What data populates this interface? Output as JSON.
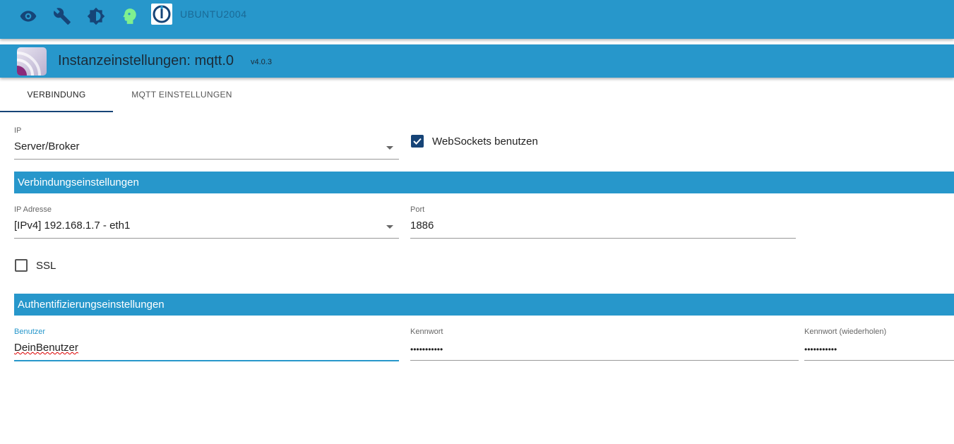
{
  "topbar": {
    "icons": [
      "eye-icon",
      "wrench-icon",
      "brightness-icon",
      "head-icon"
    ],
    "host": "UBUNTU2004",
    "icon_color": "#164477",
    "accent": "#2797cb"
  },
  "header": {
    "title": "Instanzeinstellungen: mqtt.0",
    "version": "v4.0.3"
  },
  "tabs": [
    {
      "label": "VERBINDUNG",
      "active": true
    },
    {
      "label": "MQTT EINSTELLUNGEN",
      "active": false
    }
  ],
  "form": {
    "ip": {
      "label": "IP",
      "value": "Server/Broker"
    },
    "websockets": {
      "label": "WebSockets benutzen",
      "checked": true
    },
    "section1": "Verbindungseinstellungen",
    "ip_address": {
      "label": "IP Adresse",
      "value": "[IPv4] 192.168.1.7 - eth1"
    },
    "port": {
      "label": "Port",
      "value": "1886"
    },
    "ssl": {
      "label": "SSL",
      "checked": false
    },
    "section2": "Authentifizierungseinstellungen",
    "user": {
      "label": "Benutzer",
      "value": "DeinBenutzer"
    },
    "password": {
      "label": "Kennwort",
      "value": "•••••••••••"
    },
    "password_repeat": {
      "label": "Kennwort (wiederholen)",
      "value": "•••••••••••"
    }
  }
}
